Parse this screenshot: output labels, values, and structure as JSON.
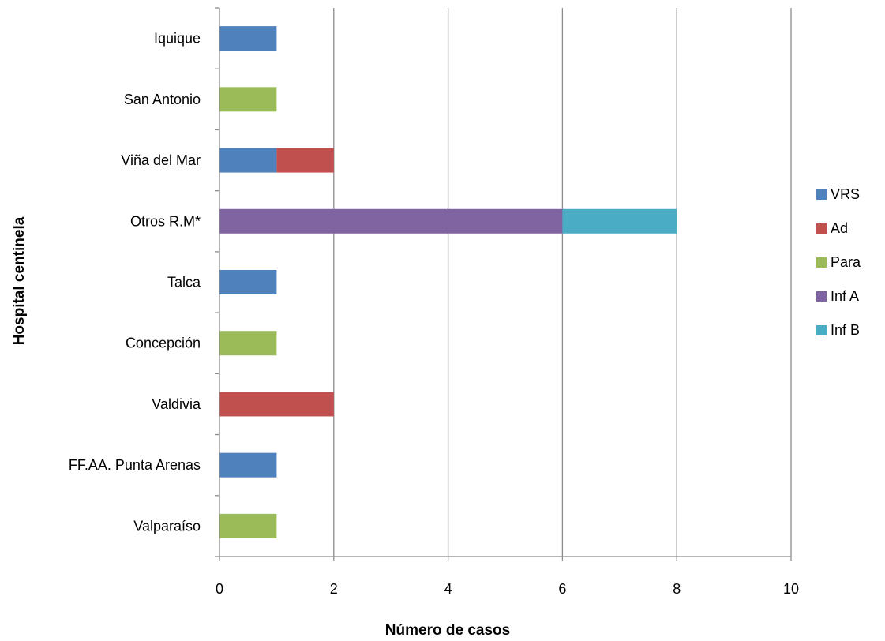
{
  "chart_data": {
    "type": "bar",
    "orientation": "horizontal",
    "stacked": true,
    "title": "",
    "xlabel": "Número de casos",
    "ylabel": "Hospital centinela",
    "xlim": [
      0,
      10
    ],
    "xticks": [
      0,
      2,
      4,
      6,
      8,
      10
    ],
    "grid": "vertical major gridlines",
    "legend_position": "right",
    "categories": [
      "Iquique",
      "San Antonio",
      "Viña del Mar",
      "Otros R.M*",
      "Talca",
      "Concepción",
      "Valdivia",
      "FF.AA. Punta Arenas",
      "Valparaíso"
    ],
    "series": [
      {
        "name": "VRS",
        "color": "#4F81BD",
        "values": [
          1,
          0,
          1,
          0,
          1,
          0,
          0,
          1,
          0
        ]
      },
      {
        "name": "Ad",
        "color": "#C0504D",
        "values": [
          0,
          0,
          1,
          0,
          0,
          0,
          2,
          0,
          0
        ]
      },
      {
        "name": "Para",
        "color": "#9BBB59",
        "values": [
          0,
          1,
          0,
          0,
          0,
          1,
          0,
          0,
          1
        ]
      },
      {
        "name": "Inf A",
        "color": "#8064A2",
        "values": [
          0,
          0,
          0,
          6,
          0,
          0,
          0,
          0,
          0
        ]
      },
      {
        "name": "Inf B",
        "color": "#4BACC6",
        "values": [
          0,
          0,
          0,
          2,
          0,
          0,
          0,
          0,
          0
        ]
      }
    ]
  }
}
